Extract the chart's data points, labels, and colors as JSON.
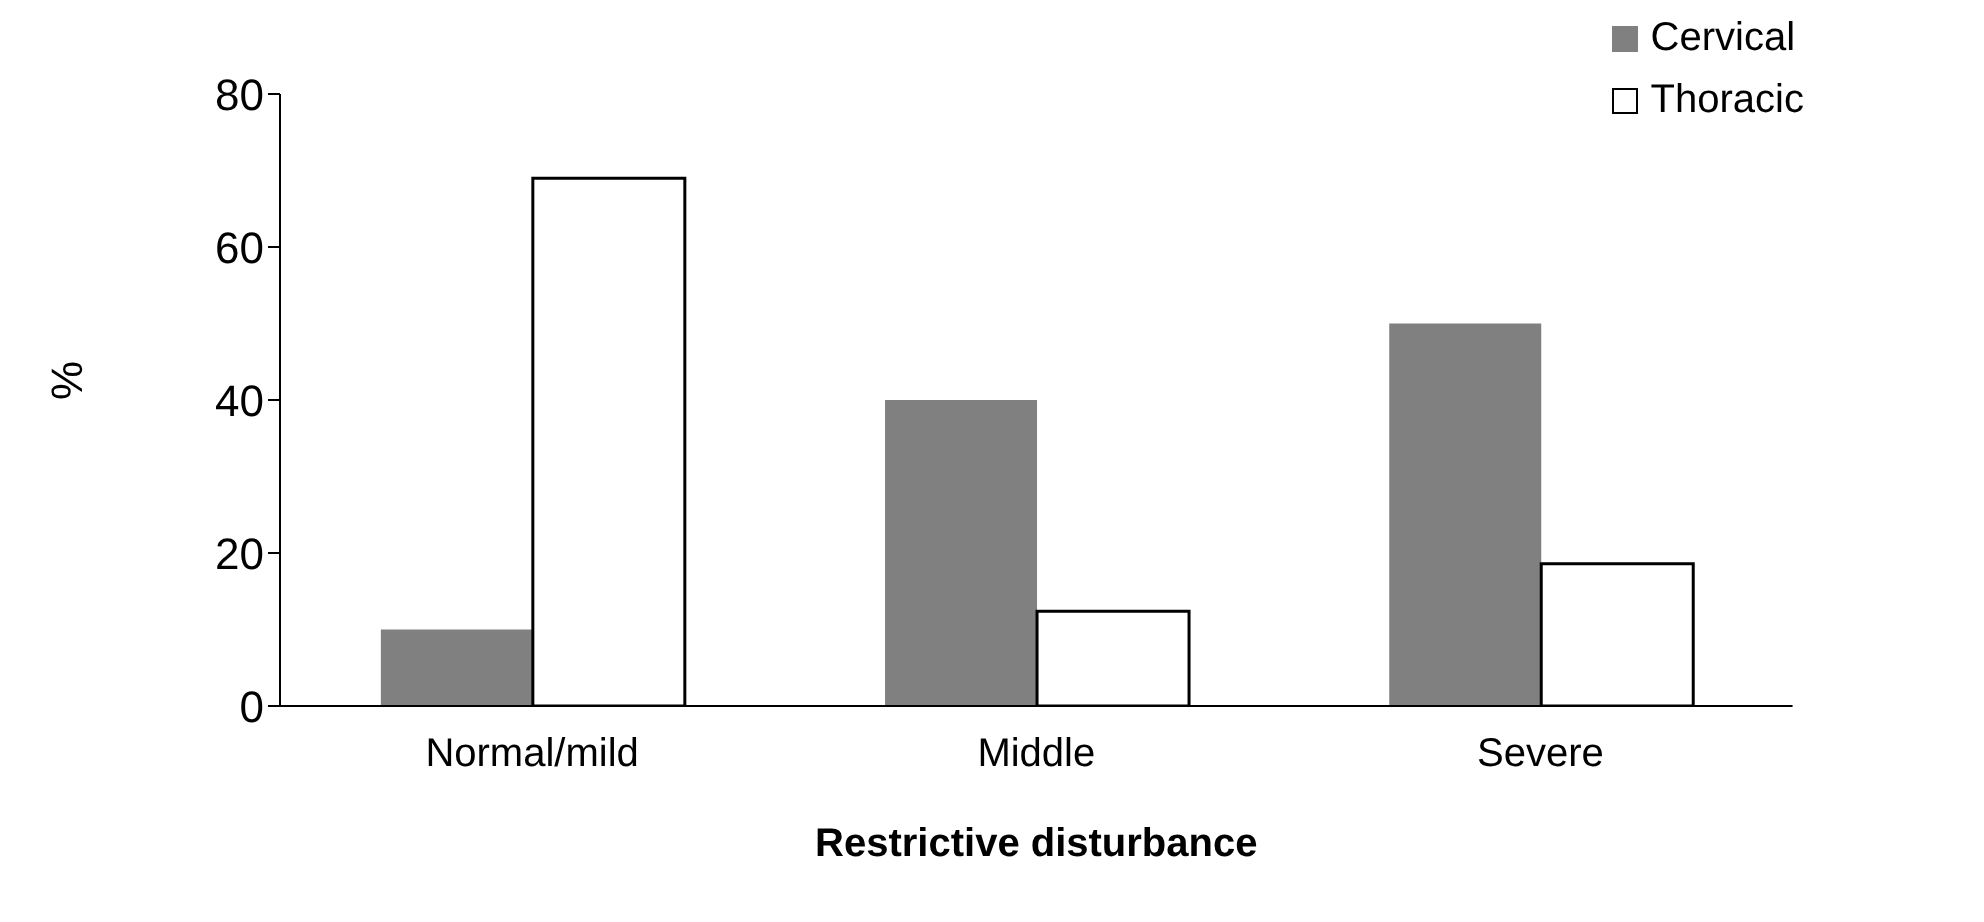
{
  "chart_data": {
    "type": "bar",
    "xlabel": "Restrictive disturbance",
    "ylabel": "%",
    "categories": [
      "Normal/mild",
      "Middle",
      "Severe"
    ],
    "series": [
      {
        "name": "Cervical",
        "color": "#808080",
        "values": [
          10,
          40,
          50
        ]
      },
      {
        "name": "Thoracic",
        "color": "#ffffff",
        "values": [
          69,
          12.4,
          18.6
        ]
      }
    ],
    "ylim": [
      0,
      80
    ],
    "yticks": [
      0,
      20,
      40,
      60,
      80
    ],
    "legend": "top right"
  }
}
